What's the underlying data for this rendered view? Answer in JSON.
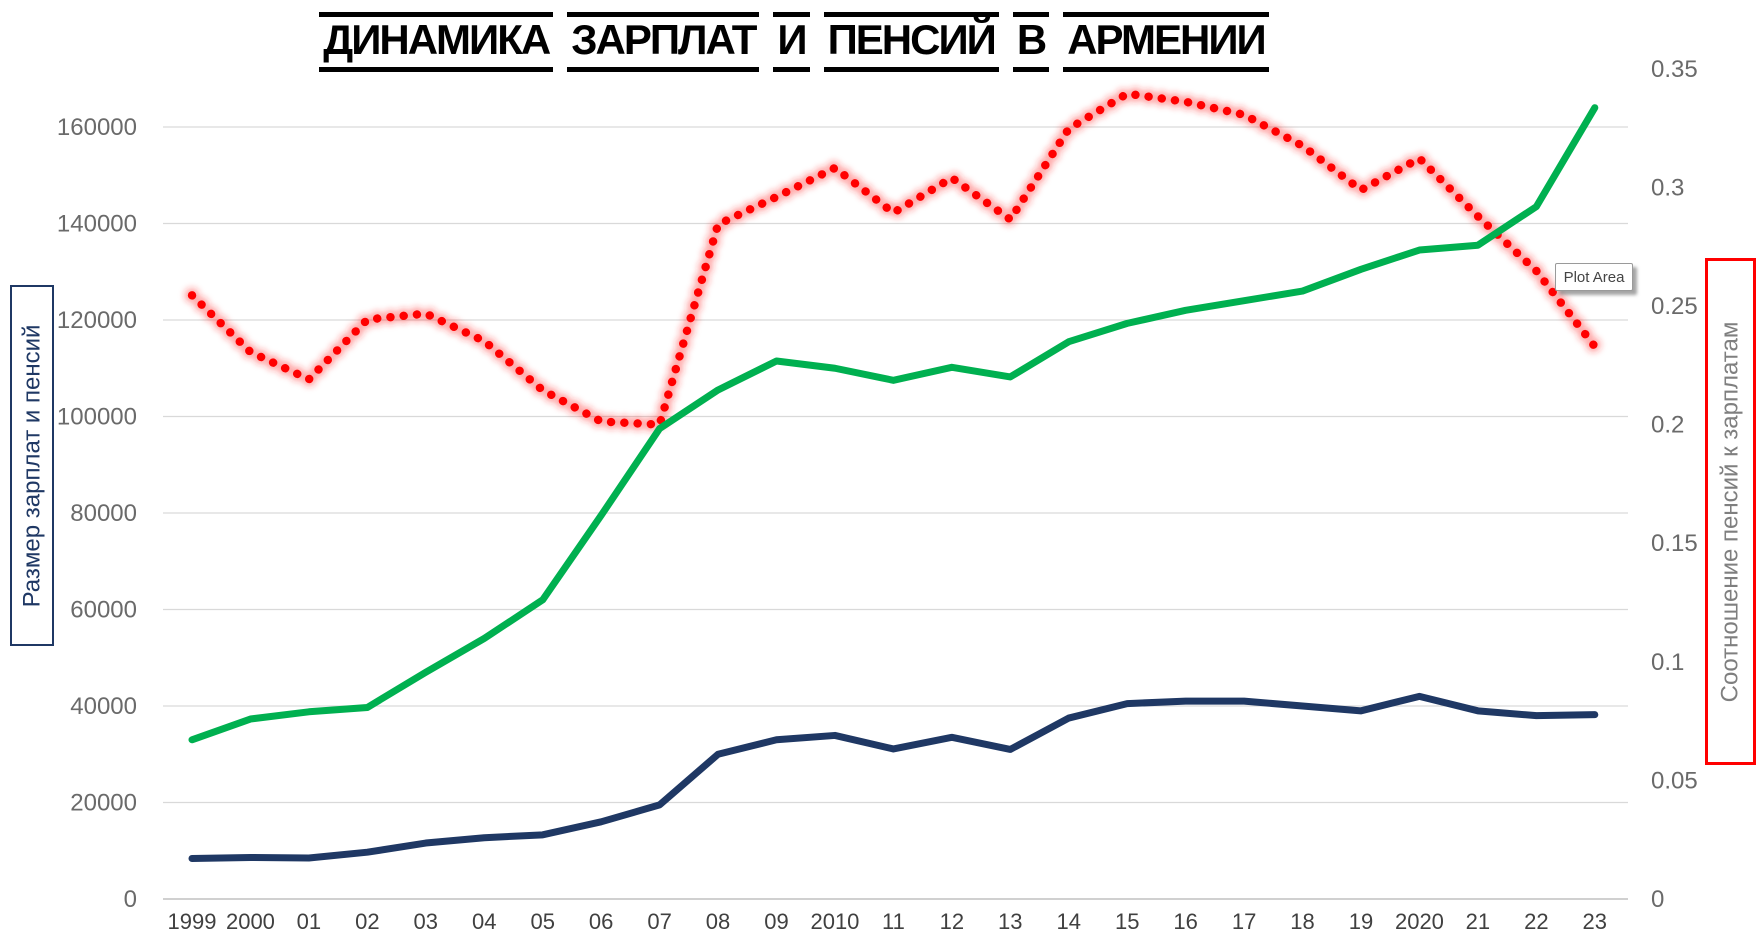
{
  "title": {
    "text": "ДИНАМИКА ЗАРПЛАТ И ПЕНСИЙ В АРМЕНИИ"
  },
  "tooltip": {
    "text": "Plot Area"
  },
  "left_axis": {
    "title": "Размер зарплат и пенсий",
    "ticks": [
      "0",
      "20000",
      "40000",
      "60000",
      "80000",
      "100000",
      "120000",
      "140000",
      "160000"
    ],
    "text_color": "#1F3864",
    "box_border_color": "#1F3864"
  },
  "right_axis": {
    "title": "Соотношение пенсий к зарплатам",
    "ticks": [
      "0",
      "0.05",
      "0.1",
      "0.15",
      "0.2",
      "0.25",
      "0.3",
      "0.35"
    ],
    "text_color": "#7F7F7F",
    "box_border_color": "#FF0000"
  },
  "x_axis": {
    "labels": [
      "1999",
      "2000",
      "01",
      "02",
      "03",
      "04",
      "05",
      "06",
      "07",
      "08",
      "09",
      "2010",
      "11",
      "12",
      "13",
      "14",
      "15",
      "16",
      "17",
      "18",
      "19",
      "2020",
      "21",
      "22",
      "23"
    ]
  },
  "chart_data": {
    "type": "line",
    "title": "ДИНАМИКА ЗАРПЛАТ И ПЕНСИЙ В АРМЕНИИ",
    "x": [
      "1999",
      "2000",
      "01",
      "02",
      "03",
      "04",
      "05",
      "06",
      "07",
      "08",
      "09",
      "2010",
      "11",
      "12",
      "13",
      "14",
      "15",
      "16",
      "17",
      "18",
      "19",
      "2020",
      "21",
      "22",
      "23"
    ],
    "left_axis_label": "Размер зарплат и пенсий",
    "right_axis_label": "Соотношение пенсий к зарплатам",
    "left_axis_range": [
      0,
      160000
    ],
    "left_axis_step": 20000,
    "right_axis_range": [
      0,
      0.35
    ],
    "right_axis_step": 0.05,
    "grid": "horizontal gridlines from left axis, light gray",
    "legend_position": "none",
    "series": [
      {
        "name": "salaries-green-line",
        "axis": "left",
        "color": "#00B050",
        "style": "solid",
        "values": [
          33000,
          37300,
          38800,
          39700,
          47000,
          54000,
          62000,
          79500,
          97500,
          105500,
          111500,
          110000,
          107500,
          110200,
          108200,
          115500,
          119300,
          122000,
          124000,
          126000,
          130500,
          134500,
          135500,
          143500,
          164000
        ]
      },
      {
        "name": "pensions-navy-line",
        "axis": "left",
        "color": "#1F3864",
        "style": "solid",
        "values": [
          8400,
          8600,
          8500,
          9700,
          11600,
          12700,
          13300,
          16000,
          19500,
          30000,
          33000,
          33900,
          31100,
          33500,
          31000,
          37500,
          40500,
          41000,
          41000,
          40000,
          39000,
          42000,
          39000,
          38000,
          38200
        ]
      },
      {
        "name": "pension-to-salary-ratio-red-dotted",
        "axis": "right",
        "color": "#FF0000",
        "style": "round-dot-glow",
        "values": [
          0.2545,
          0.2306,
          0.2191,
          0.2443,
          0.2468,
          0.2352,
          0.2145,
          0.2013,
          0.2,
          0.2844,
          0.296,
          0.3082,
          0.2893,
          0.304,
          0.2865,
          0.3247,
          0.3395,
          0.3361,
          0.3306,
          0.3175,
          0.2989,
          0.3122,
          0.2878,
          0.2648,
          0.2329
        ]
      }
    ]
  }
}
